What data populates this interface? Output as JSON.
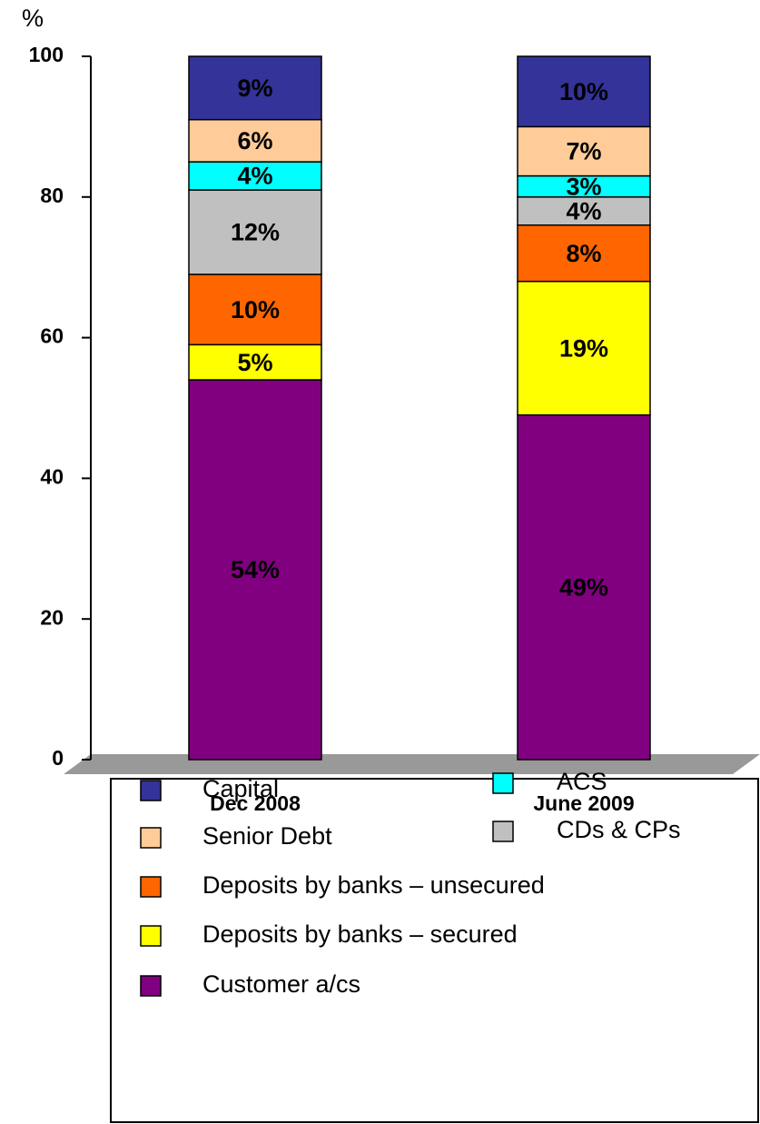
{
  "chart_data": {
    "type": "stacked_bar",
    "y_label": "%",
    "categories": [
      "Dec 2008",
      "June 2009"
    ],
    "series": [
      {
        "name": "Customer a/cs",
        "color": "#800080",
        "values": [
          54,
          49
        ],
        "value_labels": [
          "54%",
          "49%"
        ]
      },
      {
        "name": "Deposits by banks – secured",
        "color": "#FFFF00",
        "values": [
          5,
          19
        ],
        "value_labels": [
          "5%",
          "19%"
        ]
      },
      {
        "name": "Deposits by banks – unsecured",
        "color": "#FF6600",
        "values": [
          10,
          8
        ],
        "value_labels": [
          "10%",
          "8%"
        ]
      },
      {
        "name": "CDs & CPs",
        "color": "#C0C0C0",
        "values": [
          12,
          4
        ],
        "value_labels": [
          "12%",
          "4%"
        ]
      },
      {
        "name": "ACS",
        "color": "#00FFFF",
        "values": [
          4,
          3
        ],
        "value_labels": [
          "4%",
          "3%"
        ]
      },
      {
        "name": "Senior Debt",
        "color": "#FFCC99",
        "values": [
          6,
          7
        ],
        "value_labels": [
          "6%",
          "7%"
        ]
      },
      {
        "name": "Capital",
        "color": "#333399",
        "values": [
          9,
          10
        ],
        "value_labels": [
          "9%",
          "10%"
        ]
      }
    ],
    "ylim": [
      0,
      100
    ],
    "yticks": [
      0,
      20,
      40,
      60,
      80,
      100
    ]
  }
}
